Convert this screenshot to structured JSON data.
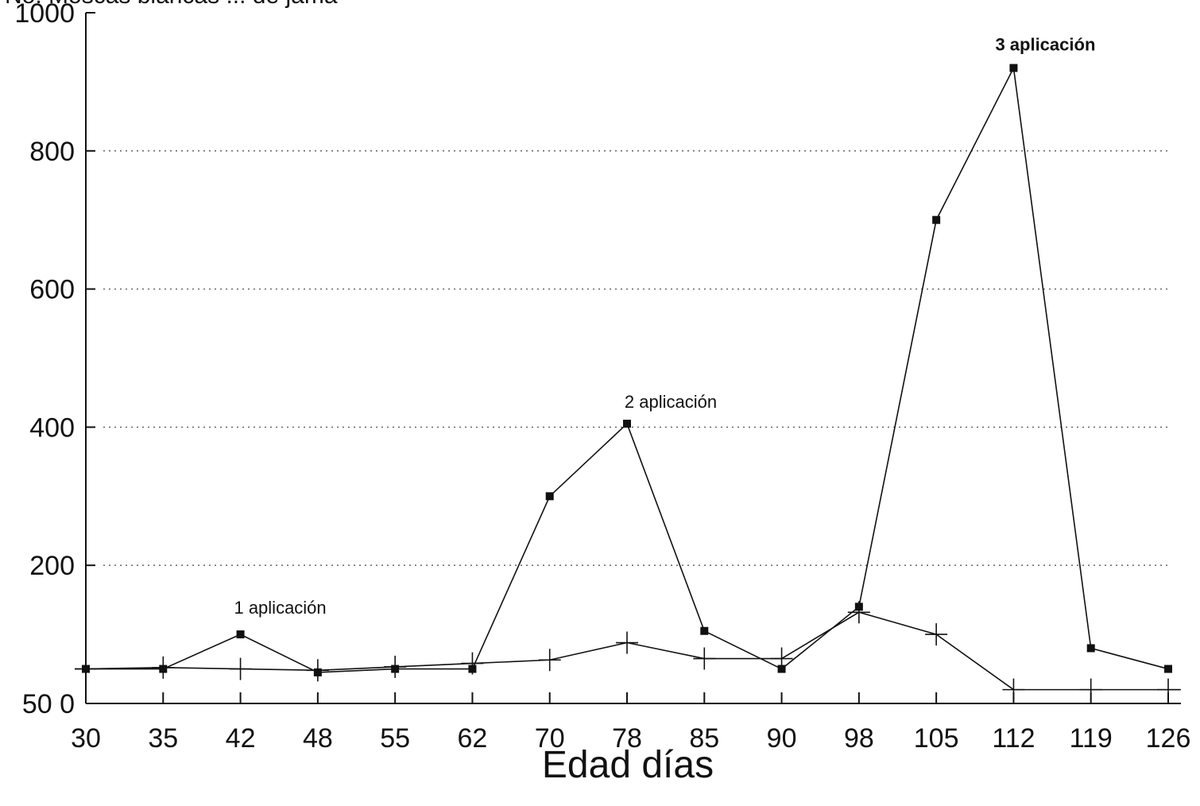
{
  "chart_data": {
    "type": "line",
    "title": "",
    "xlabel": "Edad días",
    "ylabel": "No. Moscas blancas ... de jama",
    "categories": [
      "30",
      "35",
      "42",
      "48",
      "55",
      "62",
      "70",
      "78",
      "85",
      "90",
      "98",
      "105",
      "112",
      "119",
      "126"
    ],
    "y_ticks": [
      {
        "value": 0,
        "label": "50 0"
      },
      {
        "value": 200,
        "label": "200"
      },
      {
        "value": 400,
        "label": "400"
      },
      {
        "value": 600,
        "label": "600"
      },
      {
        "value": 800,
        "label": "800"
      },
      {
        "value": 1000,
        "label": "1000"
      }
    ],
    "ylim": [
      0,
      1000
    ],
    "grid": "horizontal dotted",
    "series": [
      {
        "marker": "square",
        "values": [
          50,
          50,
          100,
          45,
          50,
          50,
          300,
          405,
          105,
          50,
          140,
          700,
          920,
          80,
          50
        ]
      },
      {
        "marker": "plus",
        "values": [
          50,
          52,
          50,
          48,
          53,
          58,
          63,
          88,
          65,
          65,
          132,
          100,
          20,
          20,
          20
        ]
      }
    ],
    "annotations": [
      {
        "text": "1  aplicación",
        "category": "42",
        "value": 100,
        "bold": false
      },
      {
        "text": "2  aplicación",
        "category": "78",
        "value": 405,
        "bold": false
      },
      {
        "text": "3  aplicación",
        "category": "112",
        "value": 920,
        "bold": true
      }
    ]
  }
}
